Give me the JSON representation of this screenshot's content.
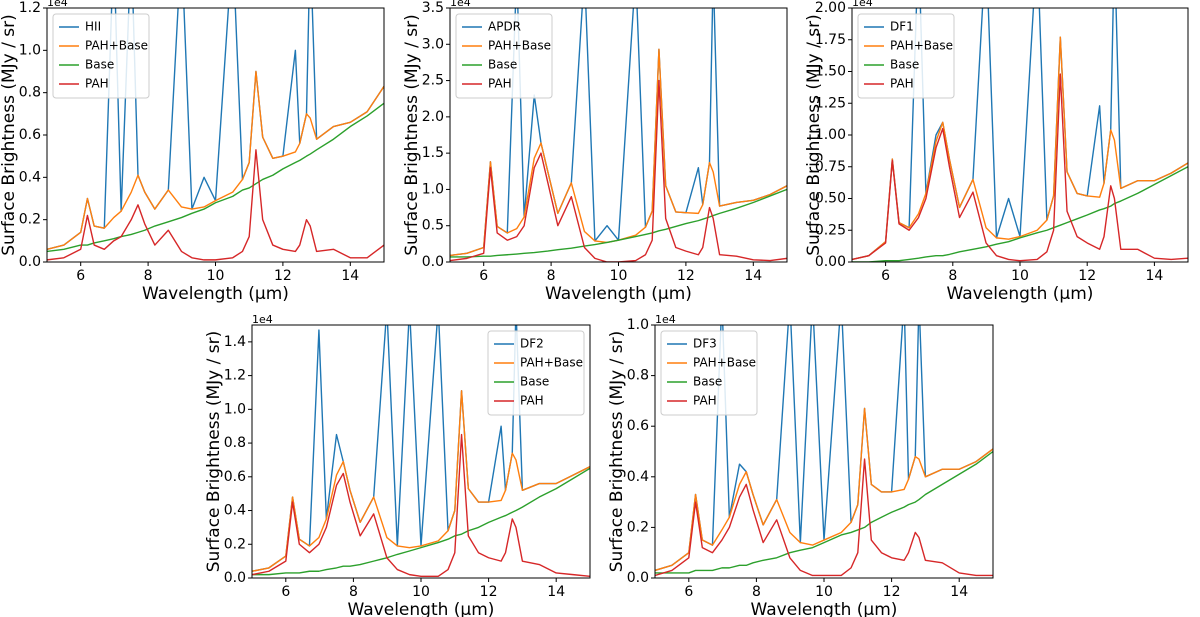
{
  "chart_data": [
    {
      "type": "line",
      "xlabel": "Wavelength (μm)",
      "ylabel": "Surface Brightness (MJy / sr)",
      "offset_label": "1e4",
      "legend": "upper left",
      "x": [
        5.0,
        5.5,
        6.0,
        6.2,
        6.4,
        6.7,
        6.98,
        7.2,
        7.5,
        7.7,
        7.9,
        8.2,
        8.6,
        8.99,
        9.3,
        9.66,
        10.0,
        10.51,
        10.8,
        11.0,
        11.2,
        11.4,
        11.7,
        12.0,
        12.37,
        12.5,
        12.7,
        12.81,
        13.0,
        13.5,
        14.0,
        14.5,
        15.0
      ],
      "xlim": [
        5,
        15
      ],
      "xticks": [
        6,
        8,
        10,
        12,
        14
      ],
      "ylim": [
        0,
        1.2
      ],
      "yticks": [
        {
          "value": 0,
          "label": "0.0"
        },
        0.2,
        0.4,
        0.6,
        0.8,
        {
          "value": 1,
          "label": "1.0"
        },
        1.2
      ],
      "series": [
        {
          "name": "HII",
          "color": "#1f77b4",
          "values": [
            0.06,
            0.08,
            0.14,
            0.3,
            0.17,
            0.16,
            1.5,
            0.24,
            1.5,
            0.41,
            0.33,
            0.25,
            0.34,
            1.5,
            0.25,
            0.4,
            0.29,
            1.5,
            0.39,
            0.47,
            0.9,
            0.59,
            0.49,
            0.5,
            1.0,
            0.56,
            0.7,
            1.5,
            0.58,
            0.64,
            0.66,
            0.71,
            0.83
          ]
        },
        {
          "name": "PAH+Base",
          "color": "#ff7f0e",
          "values": [
            0.06,
            0.08,
            0.14,
            0.3,
            0.17,
            0.16,
            0.21,
            0.24,
            0.33,
            0.41,
            0.33,
            0.25,
            0.34,
            0.26,
            0.25,
            0.26,
            0.29,
            0.33,
            0.39,
            0.47,
            0.9,
            0.59,
            0.49,
            0.5,
            0.52,
            0.56,
            0.7,
            0.68,
            0.58,
            0.64,
            0.66,
            0.71,
            0.83
          ]
        },
        {
          "name": "Base",
          "color": "#2ca02c",
          "values": [
            0.05,
            0.06,
            0.08,
            0.08,
            0.09,
            0.1,
            0.11,
            0.12,
            0.13,
            0.14,
            0.15,
            0.17,
            0.19,
            0.21,
            0.23,
            0.25,
            0.28,
            0.31,
            0.34,
            0.35,
            0.37,
            0.39,
            0.41,
            0.44,
            0.47,
            0.48,
            0.5,
            0.51,
            0.53,
            0.58,
            0.64,
            0.69,
            0.75
          ]
        },
        {
          "name": "PAH",
          "color": "#d62728",
          "values": [
            0.01,
            0.02,
            0.06,
            0.22,
            0.08,
            0.06,
            0.1,
            0.12,
            0.2,
            0.27,
            0.18,
            0.08,
            0.15,
            0.05,
            0.02,
            0.01,
            0.01,
            0.02,
            0.05,
            0.12,
            0.53,
            0.2,
            0.08,
            0.06,
            0.05,
            0.08,
            0.2,
            0.17,
            0.05,
            0.06,
            0.02,
            0.02,
            0.08
          ]
        }
      ]
    },
    {
      "type": "line",
      "xlabel": "Wavelength (μm)",
      "ylabel": "Surface Brightness (MJy / sr)",
      "offset_label": "1e4",
      "legend": "upper left",
      "x": [
        5.0,
        5.5,
        6.0,
        6.2,
        6.4,
        6.7,
        6.98,
        7.2,
        7.5,
        7.7,
        7.9,
        8.2,
        8.6,
        8.99,
        9.3,
        9.66,
        10.0,
        10.51,
        10.8,
        11.0,
        11.2,
        11.4,
        11.7,
        12.0,
        12.37,
        12.5,
        12.7,
        12.81,
        13.0,
        13.5,
        14.0,
        14.5,
        15.0
      ],
      "xlim": [
        5,
        15
      ],
      "xticks": [
        6,
        8,
        10,
        12,
        14
      ],
      "ylim": [
        0,
        3.5
      ],
      "yticks": [
        {
          "value": 0,
          "label": "0.0"
        },
        0.5,
        {
          "value": 1,
          "label": "1.0"
        },
        1.5,
        {
          "value": 2,
          "label": "2.0"
        },
        2.5,
        {
          "value": 3,
          "label": "3.0"
        },
        3.5
      ],
      "series": [
        {
          "name": "APDR",
          "color": "#1f77b4",
          "values": [
            0.09,
            0.12,
            0.2,
            1.38,
            0.49,
            0.4,
            4.0,
            0.62,
            2.3,
            1.64,
            1.25,
            0.67,
            1.09,
            4.0,
            0.29,
            0.5,
            0.3,
            4.0,
            0.48,
            0.7,
            2.93,
            1.05,
            0.69,
            0.68,
            1.3,
            0.79,
            1.37,
            4.0,
            0.77,
            0.82,
            0.85,
            0.93,
            1.05
          ]
        },
        {
          "name": "PAH+Base",
          "color": "#ff7f0e",
          "values": [
            0.09,
            0.12,
            0.2,
            1.38,
            0.49,
            0.4,
            0.46,
            0.62,
            1.43,
            1.64,
            1.25,
            0.67,
            1.09,
            0.42,
            0.29,
            0.27,
            0.3,
            0.37,
            0.48,
            0.7,
            2.93,
            1.05,
            0.69,
            0.68,
            0.67,
            0.79,
            1.37,
            1.24,
            0.77,
            0.82,
            0.85,
            0.93,
            1.05
          ]
        },
        {
          "name": "Base",
          "color": "#2ca02c",
          "values": [
            0.07,
            0.07,
            0.08,
            0.08,
            0.09,
            0.1,
            0.11,
            0.12,
            0.13,
            0.14,
            0.15,
            0.17,
            0.19,
            0.22,
            0.24,
            0.27,
            0.3,
            0.35,
            0.38,
            0.4,
            0.43,
            0.45,
            0.49,
            0.53,
            0.57,
            0.59,
            0.62,
            0.64,
            0.67,
            0.74,
            0.82,
            0.91,
            1.0
          ]
        },
        {
          "name": "PAH",
          "color": "#d62728",
          "values": [
            0.02,
            0.05,
            0.12,
            1.3,
            0.4,
            0.3,
            0.35,
            0.5,
            1.3,
            1.5,
            1.1,
            0.5,
            0.9,
            0.2,
            0.05,
            0.0,
            0.0,
            0.02,
            0.1,
            0.3,
            2.5,
            0.6,
            0.2,
            0.15,
            0.1,
            0.2,
            0.75,
            0.6,
            0.1,
            0.08,
            0.03,
            0.02,
            0.05
          ]
        }
      ]
    },
    {
      "type": "line",
      "xlabel": "Wavelength (μm)",
      "ylabel": "Surface Brightness (MJy / sr)",
      "offset_label": "1e4",
      "legend": "upper left",
      "x": [
        5.0,
        5.5,
        6.0,
        6.2,
        6.4,
        6.7,
        6.98,
        7.2,
        7.5,
        7.7,
        7.9,
        8.2,
        8.6,
        8.99,
        9.3,
        9.66,
        10.0,
        10.51,
        10.8,
        11.0,
        11.2,
        11.4,
        11.7,
        12.0,
        12.37,
        12.5,
        12.7,
        12.81,
        13.0,
        13.5,
        14.0,
        14.5,
        15.0
      ],
      "xlim": [
        5,
        15
      ],
      "xticks": [
        6,
        8,
        10,
        12,
        14
      ],
      "ylim": [
        0,
        2.0
      ],
      "yticks": [
        {
          "value": 0,
          "label": "0.00"
        },
        0.25,
        {
          "value": 0.5,
          "label": "0.50"
        },
        0.75,
        {
          "value": 1,
          "label": "1.00"
        },
        1.25,
        {
          "value": 1.5,
          "label": "1.50"
        },
        1.75,
        {
          "value": 2,
          "label": "2.00"
        }
      ],
      "series": [
        {
          "name": "DF1",
          "color": "#1f77b4",
          "values": [
            0.02,
            0.05,
            0.16,
            0.81,
            0.31,
            0.27,
            2.5,
            0.54,
            1.0,
            1.1,
            0.81,
            0.43,
            0.65,
            2.5,
            0.19,
            0.5,
            0.2,
            2.5,
            0.33,
            0.52,
            1.77,
            0.71,
            0.54,
            0.52,
            1.23,
            0.62,
            1.04,
            2.5,
            0.58,
            0.64,
            0.64,
            0.7,
            0.78
          ]
        },
        {
          "name": "PAH+Base",
          "color": "#ff7f0e",
          "values": [
            0.02,
            0.05,
            0.16,
            0.81,
            0.31,
            0.27,
            0.38,
            0.54,
            0.95,
            1.1,
            0.81,
            0.43,
            0.65,
            0.27,
            0.19,
            0.18,
            0.2,
            0.25,
            0.33,
            0.52,
            1.77,
            0.71,
            0.54,
            0.52,
            0.51,
            0.62,
            1.04,
            0.96,
            0.58,
            0.64,
            0.64,
            0.7,
            0.78
          ]
        },
        {
          "name": "Base",
          "color": "#2ca02c",
          "values": [
            0.0,
            0.0,
            0.01,
            0.01,
            0.01,
            0.02,
            0.03,
            0.04,
            0.05,
            0.05,
            0.06,
            0.08,
            0.1,
            0.12,
            0.14,
            0.16,
            0.19,
            0.23,
            0.25,
            0.27,
            0.29,
            0.31,
            0.34,
            0.37,
            0.41,
            0.42,
            0.44,
            0.46,
            0.48,
            0.54,
            0.61,
            0.68,
            0.75
          ]
        },
        {
          "name": "PAH",
          "color": "#d62728",
          "values": [
            0.02,
            0.05,
            0.15,
            0.8,
            0.3,
            0.25,
            0.35,
            0.5,
            0.9,
            1.05,
            0.75,
            0.35,
            0.55,
            0.15,
            0.05,
            0.02,
            0.01,
            0.02,
            0.08,
            0.25,
            1.48,
            0.4,
            0.2,
            0.15,
            0.1,
            0.2,
            0.6,
            0.5,
            0.1,
            0.1,
            0.03,
            0.02,
            0.03
          ]
        }
      ]
    },
    {
      "type": "line",
      "xlabel": "Wavelength (μm)",
      "ylabel": "Surface Brightness (MJy / sr)",
      "offset_label": "1e4",
      "legend": "upper right",
      "x": [
        5.0,
        5.5,
        6.0,
        6.2,
        6.4,
        6.7,
        6.98,
        7.2,
        7.5,
        7.7,
        7.9,
        8.2,
        8.6,
        8.99,
        9.3,
        9.66,
        10.0,
        10.51,
        10.8,
        11.0,
        11.2,
        11.4,
        11.7,
        12.0,
        12.37,
        12.5,
        12.7,
        12.81,
        13.0,
        13.5,
        14.0,
        14.5,
        15.0
      ],
      "xlim": [
        5,
        15
      ],
      "xticks": [
        6,
        8,
        10,
        12,
        14
      ],
      "ylim": [
        0,
        1.5
      ],
      "yticks": [
        {
          "value": 0,
          "label": "0.0"
        },
        0.2,
        0.4,
        0.6,
        0.8,
        {
          "value": 1,
          "label": "1.0"
        },
        1.2,
        1.4
      ],
      "series": [
        {
          "name": "DF2",
          "color": "#1f77b4",
          "values": [
            0.04,
            0.06,
            0.13,
            0.48,
            0.23,
            0.19,
            1.47,
            0.35,
            0.85,
            0.69,
            0.52,
            0.33,
            0.48,
            1.6,
            0.19,
            1.6,
            0.19,
            1.6,
            0.28,
            0.4,
            1.11,
            0.53,
            0.45,
            0.45,
            0.9,
            0.52,
            0.74,
            1.6,
            0.52,
            0.56,
            0.56,
            0.61,
            0.66
          ]
        },
        {
          "name": "PAH+Base",
          "color": "#ff7f0e",
          "values": [
            0.04,
            0.06,
            0.13,
            0.48,
            0.23,
            0.19,
            0.24,
            0.35,
            0.61,
            0.69,
            0.52,
            0.33,
            0.48,
            0.24,
            0.19,
            0.18,
            0.19,
            0.22,
            0.28,
            0.4,
            1.11,
            0.53,
            0.45,
            0.45,
            0.46,
            0.52,
            0.74,
            0.7,
            0.52,
            0.56,
            0.56,
            0.61,
            0.66
          ]
        },
        {
          "name": "Base",
          "color": "#2ca02c",
          "values": [
            0.02,
            0.02,
            0.03,
            0.03,
            0.03,
            0.04,
            0.04,
            0.05,
            0.06,
            0.07,
            0.07,
            0.08,
            0.1,
            0.12,
            0.14,
            0.16,
            0.18,
            0.21,
            0.23,
            0.25,
            0.26,
            0.28,
            0.3,
            0.33,
            0.36,
            0.37,
            0.39,
            0.4,
            0.42,
            0.48,
            0.53,
            0.59,
            0.65
          ]
        },
        {
          "name": "PAH",
          "color": "#d62728",
          "values": [
            0.02,
            0.04,
            0.1,
            0.45,
            0.2,
            0.15,
            0.2,
            0.3,
            0.55,
            0.62,
            0.45,
            0.25,
            0.38,
            0.12,
            0.05,
            0.02,
            0.01,
            0.01,
            0.05,
            0.15,
            0.85,
            0.25,
            0.15,
            0.12,
            0.1,
            0.15,
            0.35,
            0.3,
            0.1,
            0.08,
            0.03,
            0.02,
            0.01
          ]
        }
      ]
    },
    {
      "type": "line",
      "xlabel": "Wavelength (μm)",
      "ylabel": "Surface Brightness (MJy / sr)",
      "offset_label": "1e4",
      "legend": "upper left",
      "x": [
        5.0,
        5.5,
        6.0,
        6.2,
        6.4,
        6.7,
        6.98,
        7.2,
        7.5,
        7.7,
        7.9,
        8.2,
        8.6,
        8.99,
        9.3,
        9.66,
        10.0,
        10.51,
        10.8,
        11.0,
        11.2,
        11.4,
        11.7,
        12.0,
        12.37,
        12.5,
        12.7,
        12.81,
        13.0,
        13.5,
        14.0,
        14.5,
        15.0
      ],
      "xlim": [
        5,
        15
      ],
      "xticks": [
        6,
        8,
        10,
        12,
        14
      ],
      "ylim": [
        0,
        1.0
      ],
      "yticks": [
        {
          "value": 0,
          "label": "0.0"
        },
        0.2,
        0.4,
        0.6,
        0.8,
        {
          "value": 1,
          "label": "1.0"
        }
      ],
      "series": [
        {
          "name": "DF3",
          "color": "#1f77b4",
          "values": [
            0.03,
            0.05,
            0.1,
            0.33,
            0.15,
            0.13,
            1.1,
            0.24,
            0.45,
            0.42,
            0.33,
            0.21,
            0.31,
            1.1,
            0.14,
            1.1,
            0.15,
            1.1,
            0.22,
            0.29,
            0.67,
            0.37,
            0.34,
            0.34,
            1.1,
            0.39,
            0.48,
            1.1,
            0.4,
            0.43,
            0.43,
            0.46,
            0.51
          ]
        },
        {
          "name": "PAH+Base",
          "color": "#ff7f0e",
          "values": [
            0.03,
            0.05,
            0.1,
            0.33,
            0.15,
            0.13,
            0.19,
            0.24,
            0.37,
            0.42,
            0.33,
            0.21,
            0.31,
            0.18,
            0.14,
            0.13,
            0.15,
            0.18,
            0.22,
            0.29,
            0.67,
            0.37,
            0.34,
            0.34,
            0.35,
            0.39,
            0.48,
            0.47,
            0.4,
            0.43,
            0.43,
            0.46,
            0.51
          ]
        },
        {
          "name": "Base",
          "color": "#2ca02c",
          "values": [
            0.02,
            0.02,
            0.02,
            0.03,
            0.03,
            0.03,
            0.04,
            0.04,
            0.05,
            0.05,
            0.06,
            0.07,
            0.08,
            0.1,
            0.11,
            0.12,
            0.14,
            0.17,
            0.18,
            0.19,
            0.2,
            0.22,
            0.24,
            0.26,
            0.28,
            0.29,
            0.3,
            0.31,
            0.33,
            0.37,
            0.41,
            0.45,
            0.5
          ]
        },
        {
          "name": "PAH",
          "color": "#d62728",
          "values": [
            0.01,
            0.03,
            0.08,
            0.3,
            0.12,
            0.1,
            0.15,
            0.2,
            0.32,
            0.37,
            0.27,
            0.14,
            0.23,
            0.08,
            0.03,
            0.01,
            0.01,
            0.01,
            0.04,
            0.1,
            0.47,
            0.15,
            0.1,
            0.08,
            0.07,
            0.1,
            0.18,
            0.16,
            0.07,
            0.06,
            0.02,
            0.01,
            0.01
          ]
        }
      ]
    }
  ]
}
